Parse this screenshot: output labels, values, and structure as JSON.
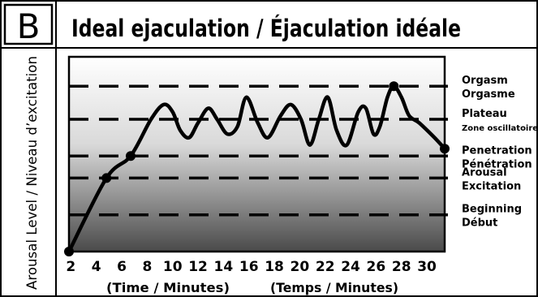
{
  "figure": {
    "panel_letter": "B"
  },
  "chart_data": {
    "type": "line",
    "title": "Ideal ejaculation / Éjaculation idéale",
    "ylabel": "Arousal Level / Niveau d’excitation",
    "xlabel_left": "(Time / Minutes)",
    "xlabel_right": "(Temps / Minutes)",
    "x_ticks": [
      2,
      4,
      6,
      8,
      10,
      12,
      14,
      16,
      18,
      20,
      22,
      24,
      26,
      28,
      30
    ],
    "xlim": [
      1.85,
      31.4
    ],
    "ylim": [
      0,
      5.3
    ],
    "levels": [
      {
        "y": 1,
        "lines": [
          "Beginning",
          "Début"
        ],
        "small": [
          false,
          false
        ]
      },
      {
        "y": 2,
        "lines": [
          "Arousal",
          "Excitation"
        ],
        "small": [
          false,
          false
        ]
      },
      {
        "y": 2.6,
        "lines": [
          "Penetration",
          "Pénétration"
        ],
        "small": [
          false,
          false
        ]
      },
      {
        "y": 3.6,
        "lines": [
          "Plateau",
          "Zone oscillatoire"
        ],
        "small": [
          false,
          true
        ]
      },
      {
        "y": 4.5,
        "lines": [
          "Orgasm",
          "Orgasme"
        ],
        "small": [
          false,
          false
        ]
      }
    ],
    "series": [
      {
        "x": [
          1.85,
          4.8,
          6.7,
          8.3,
          9.3,
          10.0,
          10.6,
          11.3,
          12.0,
          12.8,
          13.5,
          14.3,
          15.1,
          15.8,
          16.7,
          17.5,
          18.5,
          19.3,
          20.1,
          20.8,
          21.5,
          22.2,
          22.9,
          23.7,
          24.6,
          25.2,
          25.8,
          26.3,
          26.9,
          27.4,
          28.0,
          28.6,
          29.4,
          30.6,
          31.4
        ],
        "y": [
          0.0,
          2.0,
          2.6,
          3.6,
          4.0,
          3.8,
          3.3,
          3.1,
          3.5,
          3.9,
          3.6,
          3.2,
          3.4,
          4.2,
          3.5,
          3.1,
          3.7,
          4.0,
          3.6,
          2.9,
          3.6,
          4.2,
          3.3,
          2.9,
          3.8,
          3.9,
          3.2,
          3.4,
          4.2,
          4.5,
          4.2,
          3.7,
          3.5,
          3.1,
          2.8
        ]
      }
    ],
    "markers": [
      {
        "x": 1.85,
        "y": 0.0
      },
      {
        "x": 4.8,
        "y": 2.0
      },
      {
        "x": 6.7,
        "y": 2.6
      },
      {
        "x": 27.4,
        "y": 4.5
      },
      {
        "x": 31.4,
        "y": 2.8
      }
    ]
  }
}
